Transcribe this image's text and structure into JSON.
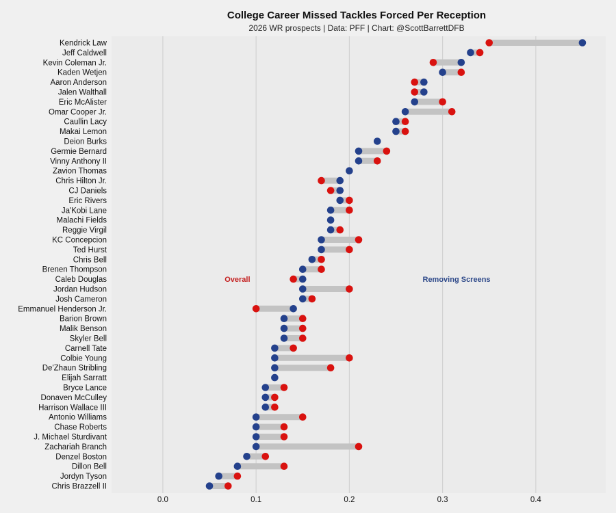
{
  "chart_data": {
    "type": "dumbbell",
    "title": "College Career Missed Tackles Forced Per Reception",
    "subtitle": "2026 WR prospects | Data: PFF | Chart: @ScottBarrettDFB",
    "xlim": [
      -0.055,
      0.475
    ],
    "xticks": [
      "0.0",
      "0.1",
      "0.2",
      "0.3",
      "0.4"
    ],
    "grid": "vertical",
    "series": [
      {
        "name": "Overall",
        "color": "#d9120f"
      },
      {
        "name": "Removing Screens",
        "color": "#24418c"
      }
    ],
    "annotations": [
      {
        "text": "Overall",
        "x": 0.08,
        "row": 24,
        "color": "#c42020"
      },
      {
        "text": "Removing Screens",
        "x": 0.315,
        "row": 24,
        "color": "#2f4a8a"
      }
    ],
    "players": [
      {
        "name": "Kendrick Law",
        "overall": 0.35,
        "no_screens": 0.45
      },
      {
        "name": "Jeff Caldwell",
        "overall": 0.34,
        "no_screens": 0.33
      },
      {
        "name": "Kevin Coleman Jr.",
        "overall": 0.29,
        "no_screens": 0.32
      },
      {
        "name": "Kaden Wetjen",
        "overall": 0.32,
        "no_screens": 0.3
      },
      {
        "name": "Aaron Anderson",
        "overall": 0.27,
        "no_screens": 0.28
      },
      {
        "name": "Jalen Walthall",
        "overall": 0.27,
        "no_screens": 0.28
      },
      {
        "name": "Eric McAlister",
        "overall": 0.3,
        "no_screens": 0.27
      },
      {
        "name": "Omar Cooper Jr.",
        "overall": 0.31,
        "no_screens": 0.26
      },
      {
        "name": "Caullin Lacy",
        "overall": 0.26,
        "no_screens": 0.25
      },
      {
        "name": "Makai Lemon",
        "overall": 0.26,
        "no_screens": 0.25
      },
      {
        "name": "Deion Burks",
        "overall": null,
        "no_screens": 0.23
      },
      {
        "name": "Germie Bernard",
        "overall": 0.24,
        "no_screens": 0.21
      },
      {
        "name": "Vinny Anthony II",
        "overall": 0.23,
        "no_screens": 0.21
      },
      {
        "name": "Zavion Thomas",
        "overall": null,
        "no_screens": 0.2
      },
      {
        "name": "Chris Hilton Jr.",
        "overall": 0.17,
        "no_screens": 0.19
      },
      {
        "name": "CJ Daniels",
        "overall": 0.18,
        "no_screens": 0.19
      },
      {
        "name": "Eric Rivers",
        "overall": 0.2,
        "no_screens": 0.19
      },
      {
        "name": "Ja'Kobi Lane",
        "overall": 0.2,
        "no_screens": 0.18
      },
      {
        "name": "Malachi Fields",
        "overall": null,
        "no_screens": 0.18
      },
      {
        "name": "Reggie Virgil",
        "overall": 0.19,
        "no_screens": 0.18
      },
      {
        "name": "KC Concepcion",
        "overall": 0.21,
        "no_screens": 0.17
      },
      {
        "name": "Ted Hurst",
        "overall": 0.2,
        "no_screens": 0.17
      },
      {
        "name": "Chris Bell",
        "overall": 0.17,
        "no_screens": 0.16
      },
      {
        "name": "Brenen Thompson",
        "overall": 0.17,
        "no_screens": 0.15
      },
      {
        "name": "Caleb Douglas",
        "overall": 0.14,
        "no_screens": 0.15
      },
      {
        "name": "Jordan Hudson",
        "overall": 0.2,
        "no_screens": 0.15
      },
      {
        "name": "Josh Cameron",
        "overall": 0.16,
        "no_screens": 0.15
      },
      {
        "name": "Emmanuel Henderson Jr.",
        "overall": 0.1,
        "no_screens": 0.14
      },
      {
        "name": "Barion Brown",
        "overall": 0.15,
        "no_screens": 0.13
      },
      {
        "name": "Malik Benson",
        "overall": 0.15,
        "no_screens": 0.13
      },
      {
        "name": "Skyler Bell",
        "overall": 0.15,
        "no_screens": 0.13
      },
      {
        "name": "Carnell Tate",
        "overall": 0.14,
        "no_screens": 0.12
      },
      {
        "name": "Colbie Young",
        "overall": 0.2,
        "no_screens": 0.12
      },
      {
        "name": "De'Zhaun Stribling",
        "overall": 0.18,
        "no_screens": 0.12
      },
      {
        "name": "Elijah Sarratt",
        "overall": null,
        "no_screens": 0.12
      },
      {
        "name": "Bryce Lance",
        "overall": 0.13,
        "no_screens": 0.11
      },
      {
        "name": "Donaven McCulley",
        "overall": 0.12,
        "no_screens": 0.11
      },
      {
        "name": "Harrison Wallace III",
        "overall": 0.12,
        "no_screens": 0.11
      },
      {
        "name": "Antonio Williams",
        "overall": 0.15,
        "no_screens": 0.1
      },
      {
        "name": "Chase Roberts",
        "overall": 0.13,
        "no_screens": 0.1
      },
      {
        "name": "J. Michael Sturdivant",
        "overall": 0.13,
        "no_screens": 0.1
      },
      {
        "name": "Zachariah Branch",
        "overall": 0.21,
        "no_screens": 0.1
      },
      {
        "name": "Denzel Boston",
        "overall": 0.11,
        "no_screens": 0.09
      },
      {
        "name": "Dillon Bell",
        "overall": 0.13,
        "no_screens": 0.08
      },
      {
        "name": "Jordyn Tyson",
        "overall": 0.08,
        "no_screens": 0.06
      },
      {
        "name": "Chris Brazzell II",
        "overall": 0.07,
        "no_screens": 0.05
      }
    ]
  }
}
